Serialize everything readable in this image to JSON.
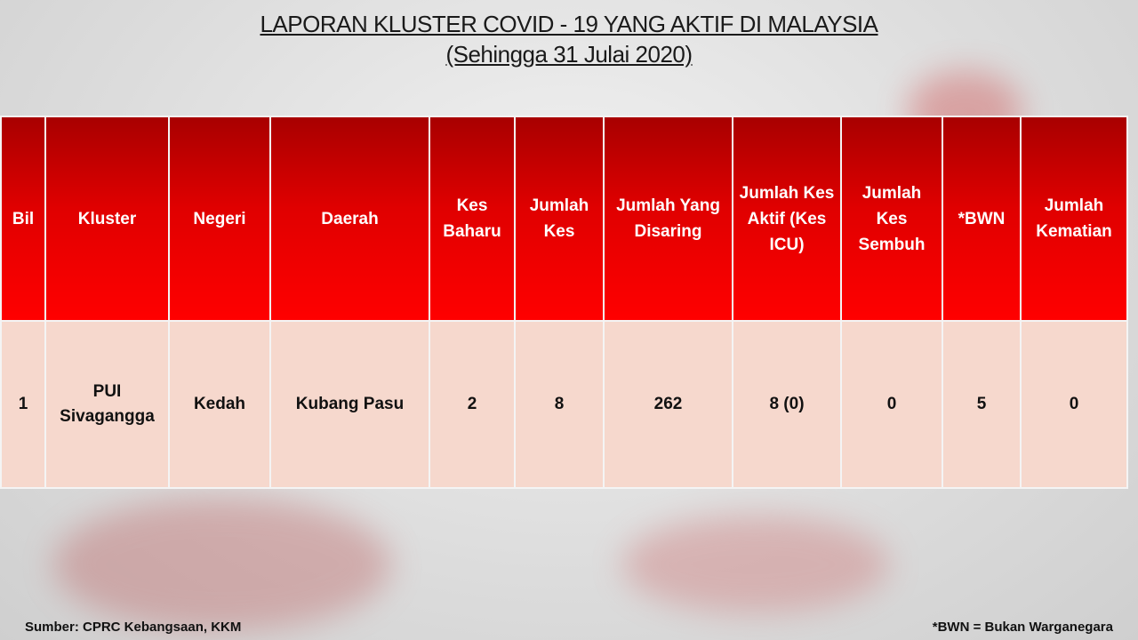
{
  "title": {
    "line1": "LAPORAN KLUSTER COVID - 19 YANG AKTIF DI MALAYSIA",
    "line2": "(Sehingga 31 Julai 2020)"
  },
  "table": {
    "headers": [
      "Bil",
      "Kluster",
      "Negeri",
      "Daerah",
      "Kes Baharu",
      "Jumlah Kes",
      "Jumlah Yang Disaring",
      "Jumlah Kes Aktif (Kes ICU)",
      "Jumlah Kes Sembuh",
      "*BWN",
      "Jumlah Kematian"
    ],
    "rows": [
      [
        "1",
        "PUI Sivagangga",
        "Kedah",
        "Kubang Pasu",
        "2",
        "8",
        "262",
        "8 (0)",
        "0",
        "5",
        "0"
      ]
    ]
  },
  "footer": {
    "source": "Sumber: CPRC Kebangsaan, KKM",
    "note": "*BWN = Bukan Warganegara"
  },
  "colors": {
    "header_red": "#e00000",
    "row_bg": "#f6d8cd"
  }
}
